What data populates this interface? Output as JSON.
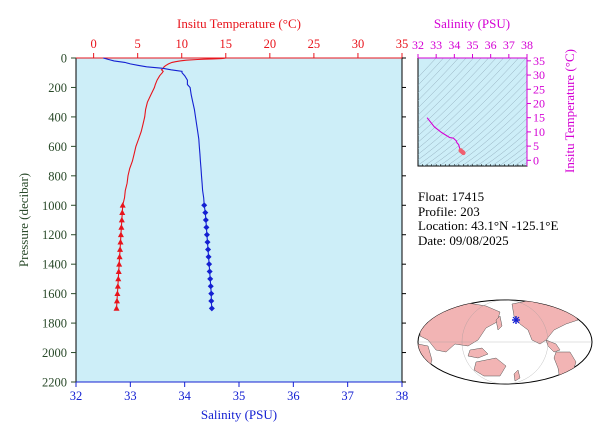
{
  "colors": {
    "temperature": "#e8141c",
    "salinity": "#1420d2",
    "ts_diagram": "#d400d4",
    "plot_bg": "#cdeef8",
    "pressure_axis": "#2a4a2a",
    "map_land": "#f2b4b4",
    "map_ocean": "#ffffff",
    "float_marker": "#1420d2"
  },
  "info": {
    "float_label": "Float:",
    "float_value": "17415",
    "profile_label": "Profile:",
    "profile_value": "203",
    "location_label": "Location:",
    "location_value": "43.1°N  -125.1°E",
    "date_label": "Date:",
    "date_value": "09/08/2025"
  },
  "chart_data": [
    {
      "type": "line",
      "name_role": "profile",
      "xlabel_top": "Insitu Temperature (°C)",
      "xlabel_bottom": "Salinity (PSU)",
      "ylabel": "Pressure (decibar)",
      "y_inverted": true,
      "ylim": [
        0,
        2200
      ],
      "temp_xlim": [
        -2,
        35
      ],
      "sal_xlim": [
        32,
        38
      ],
      "temp_ticks": [
        0,
        5,
        10,
        15,
        20,
        25,
        30,
        35
      ],
      "sal_ticks": [
        32,
        33,
        34,
        35,
        36,
        37,
        38
      ],
      "y_ticks": [
        0,
        200,
        400,
        600,
        800,
        1000,
        1200,
        1400,
        1600,
        1800,
        2000,
        2200
      ],
      "temperature": {
        "pressure": [
          0,
          2,
          4,
          6,
          8,
          10,
          15,
          20,
          25,
          30,
          40,
          50,
          60,
          70,
          80,
          90,
          100,
          120,
          150,
          180,
          200,
          250,
          300,
          350,
          400,
          450,
          500,
          550,
          600,
          650,
          700,
          750,
          800,
          850,
          900,
          950,
          1000,
          1050,
          1100,
          1150,
          1200,
          1250,
          1300,
          1350,
          1400,
          1450,
          1500,
          1550,
          1600,
          1650,
          1700
        ],
        "values": [
          15.0,
          14.8,
          14.5,
          13.5,
          12.5,
          11.8,
          10.5,
          9.8,
          9.3,
          8.9,
          8.5,
          8.2,
          8.0,
          7.9,
          7.7,
          7.9,
          7.8,
          7.5,
          7.2,
          7.0,
          6.9,
          6.5,
          6.1,
          5.9,
          5.8,
          5.6,
          5.4,
          5.1,
          4.8,
          4.6,
          4.4,
          4.1,
          3.9,
          3.8,
          3.6,
          3.5,
          3.3,
          3.25,
          3.2,
          3.15,
          3.1,
          3.05,
          3.0,
          2.95,
          2.9,
          2.85,
          2.8,
          2.75,
          2.7,
          2.65,
          2.6
        ],
        "marker_pressures": [
          1000,
          1050,
          1100,
          1150,
          1200,
          1250,
          1300,
          1350,
          1400,
          1450,
          1500,
          1550,
          1600,
          1650,
          1700
        ]
      },
      "salinity": {
        "pressure": [
          0,
          10,
          20,
          30,
          40,
          50,
          60,
          70,
          80,
          90,
          100,
          120,
          150,
          180,
          200,
          250,
          300,
          350,
          400,
          450,
          500,
          550,
          600,
          650,
          700,
          750,
          800,
          850,
          900,
          950,
          1000,
          1050,
          1100,
          1150,
          1200,
          1250,
          1300,
          1350,
          1400,
          1450,
          1500,
          1550,
          1600,
          1650,
          1700
        ],
        "values": [
          32.5,
          32.6,
          32.7,
          32.9,
          33.0,
          33.15,
          33.3,
          33.6,
          33.75,
          33.95,
          33.95,
          34.0,
          34.05,
          34.05,
          34.1,
          34.12,
          34.15,
          34.18,
          34.2,
          34.22,
          34.24,
          34.26,
          34.27,
          34.28,
          34.29,
          34.3,
          34.31,
          34.32,
          34.33,
          34.35,
          34.36,
          34.38,
          34.39,
          34.4,
          34.41,
          34.42,
          34.43,
          34.44,
          34.45,
          34.46,
          34.47,
          34.48,
          34.49,
          34.49,
          34.5
        ],
        "marker_pressures": [
          1000,
          1050,
          1100,
          1150,
          1200,
          1250,
          1300,
          1350,
          1400,
          1450,
          1500,
          1550,
          1600,
          1650,
          1700
        ]
      }
    },
    {
      "type": "line",
      "name_role": "ts-diagram",
      "xlabel": "Salinity (PSU)",
      "ylabel": "Insitu Temperature (°C)",
      "xlim": [
        32,
        38
      ],
      "ylim": [
        -2,
        36
      ],
      "x_ticks": [
        32,
        33,
        34,
        35,
        36,
        37,
        38
      ],
      "y_ticks": [
        0,
        5,
        10,
        15,
        20,
        25,
        30,
        35
      ],
      "salinity": [
        32.5,
        32.9,
        33.3,
        33.75,
        33.95,
        34.05,
        34.1,
        34.15,
        34.2,
        34.24,
        34.27,
        34.3,
        34.32,
        34.35,
        34.38,
        34.41,
        34.44,
        34.47,
        34.5
      ],
      "temperature": [
        15.0,
        11.8,
        9.8,
        8.0,
        7.8,
        7.2,
        6.9,
        6.1,
        5.8,
        5.4,
        4.8,
        4.1,
        3.8,
        3.5,
        3.25,
        3.1,
        2.95,
        2.8,
        2.6
      ],
      "marker_start_index": 13
    }
  ]
}
